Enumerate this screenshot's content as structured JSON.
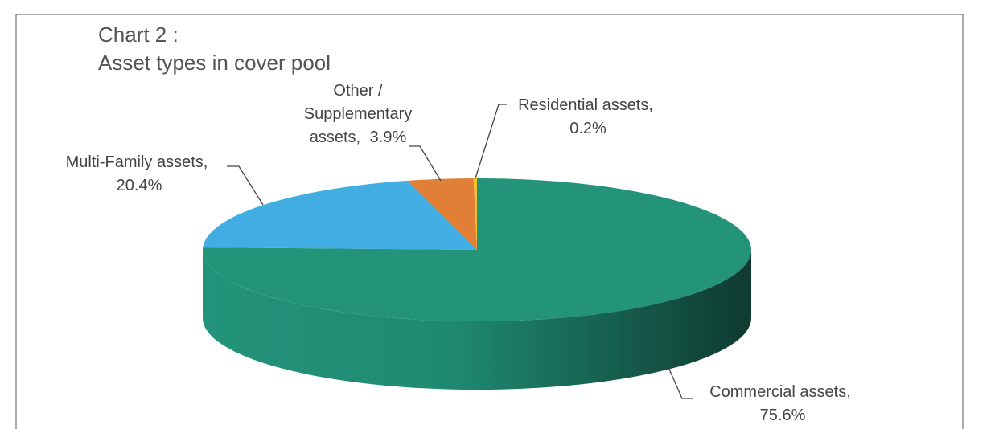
{
  "chart_data": {
    "type": "pie3d",
    "title": "Chart 2 :",
    "subtitle": "Asset types in cover pool",
    "categories": [
      "Commercial assets,",
      "Multi-Family assets,",
      "Other / Supplementary assets,",
      "Residential assets,"
    ],
    "values": [
      75.6,
      20.4,
      3.9,
      0.2
    ],
    "value_labels": [
      "75.6%",
      "20.4%",
      "3.9%",
      "0.2%"
    ],
    "colors": [
      "#23937a",
      "#41ade3",
      "#e07f35",
      "#f2c12e"
    ]
  }
}
